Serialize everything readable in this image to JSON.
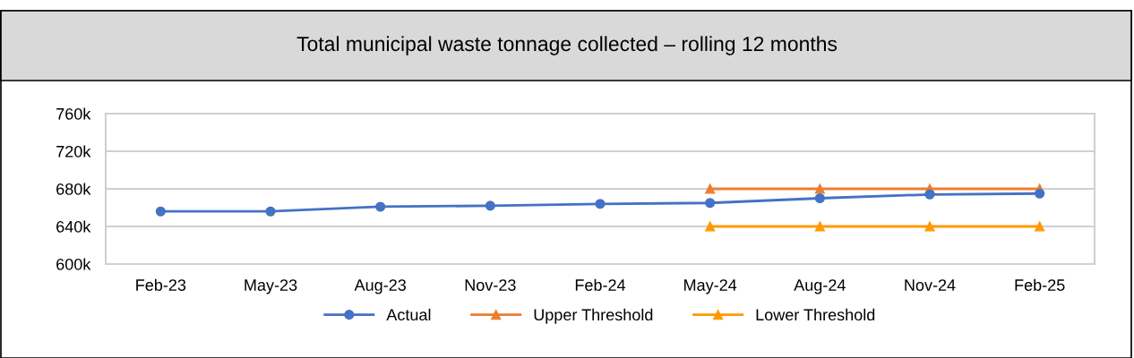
{
  "chart_data": {
    "type": "line",
    "title": "Total municipal waste tonnage collected – rolling 12 months",
    "categories": [
      "Feb-23",
      "May-23",
      "Aug-23",
      "Nov-23",
      "Feb-24",
      "May-24",
      "Aug-24",
      "Nov-24",
      "Feb-25"
    ],
    "series": [
      {
        "name": "Actual",
        "color": "#4472c4",
        "marker": "circle",
        "values": [
          656,
          656,
          661,
          662,
          664,
          665,
          670,
          674,
          675
        ]
      },
      {
        "name": "Upper Threshold",
        "color": "#ed7d31",
        "marker": "triangle",
        "values": [
          null,
          null,
          null,
          null,
          null,
          680,
          680,
          680,
          680
        ]
      },
      {
        "name": "Lower Threshold",
        "color": "#ff9900",
        "marker": "triangle",
        "values": [
          null,
          null,
          null,
          null,
          null,
          640,
          640,
          640,
          640
        ]
      }
    ],
    "ylim": [
      600,
      760
    ],
    "yticks": [
      {
        "value": 600,
        "label": "600k"
      },
      {
        "value": 640,
        "label": "640k"
      },
      {
        "value": 680,
        "label": "680k"
      },
      {
        "value": 720,
        "label": "720k"
      },
      {
        "value": 760,
        "label": "760k"
      }
    ],
    "grid": "y",
    "legend": "bottom",
    "line_style": "solid"
  }
}
